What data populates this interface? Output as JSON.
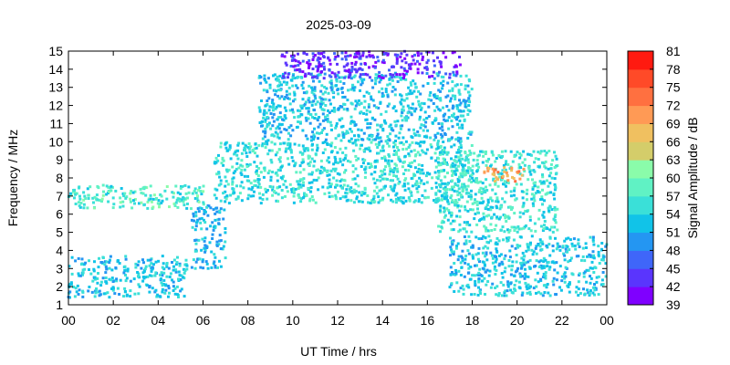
{
  "chart_data": {
    "type": "heatmap",
    "title": "2025-03-09",
    "xlabel": "UT Time / hrs",
    "ylabel": "Frequency / MHz",
    "colorbar_label": "Signal Amplitude / dB",
    "xlim": [
      0,
      24
    ],
    "ylim": [
      1,
      15
    ],
    "x_ticks": [
      "00",
      "02",
      "04",
      "06",
      "08",
      "10",
      "12",
      "14",
      "16",
      "18",
      "20",
      "22",
      "00"
    ],
    "y_ticks": [
      "1",
      "2",
      "3",
      "4",
      "5",
      "6",
      "7",
      "8",
      "9",
      "10",
      "11",
      "12",
      "13",
      "14",
      "15"
    ],
    "colorbar_range": [
      39,
      81
    ],
    "colorbar_ticks": [
      "39",
      "42",
      "45",
      "48",
      "51",
      "54",
      "57",
      "60",
      "63",
      "66",
      "69",
      "72",
      "75",
      "78",
      "81"
    ],
    "colorbar_colors": [
      "#7f00ff",
      "#5a35fd",
      "#3f66f9",
      "#2496f2",
      "#11c3e8",
      "#3ae0d8",
      "#60f2c4",
      "#8afcaa",
      "#d4cd6a",
      "#f0c060",
      "#ff9a55",
      "#ff7040",
      "#ff4a28",
      "#ff1a10"
    ],
    "grid": false,
    "approx_occupancy": [
      {
        "x_range": [
          0,
          5.3
        ],
        "y_range": [
          1.4,
          3.7
        ],
        "typical_db": 53
      },
      {
        "x_range": [
          0,
          6.2
        ],
        "y_range": [
          6.3,
          7.6
        ],
        "typical_db": 57
      },
      {
        "x_range": [
          5.5,
          7.0
        ],
        "y_range": [
          3.0,
          6.5
        ],
        "typical_db": 52
      },
      {
        "x_range": [
          6.5,
          18.0
        ],
        "y_range": [
          6.6,
          10.0
        ],
        "typical_db": 55
      },
      {
        "x_range": [
          8.5,
          18.0
        ],
        "y_range": [
          10.0,
          13.8
        ],
        "typical_db": 53
      },
      {
        "x_range": [
          9.5,
          17.5
        ],
        "y_range": [
          13.5,
          15.0
        ],
        "typical_db": 43
      },
      {
        "x_range": [
          16.5,
          21.8
        ],
        "y_range": [
          5.0,
          9.5
        ],
        "typical_db": 56
      },
      {
        "x_range": [
          17.0,
          24.0
        ],
        "y_range": [
          1.5,
          4.8
        ],
        "typical_db": 53
      },
      {
        "x_range": [
          18.5,
          20.5
        ],
        "y_range": [
          7.8,
          8.6
        ],
        "typical_db": 70
      }
    ]
  }
}
